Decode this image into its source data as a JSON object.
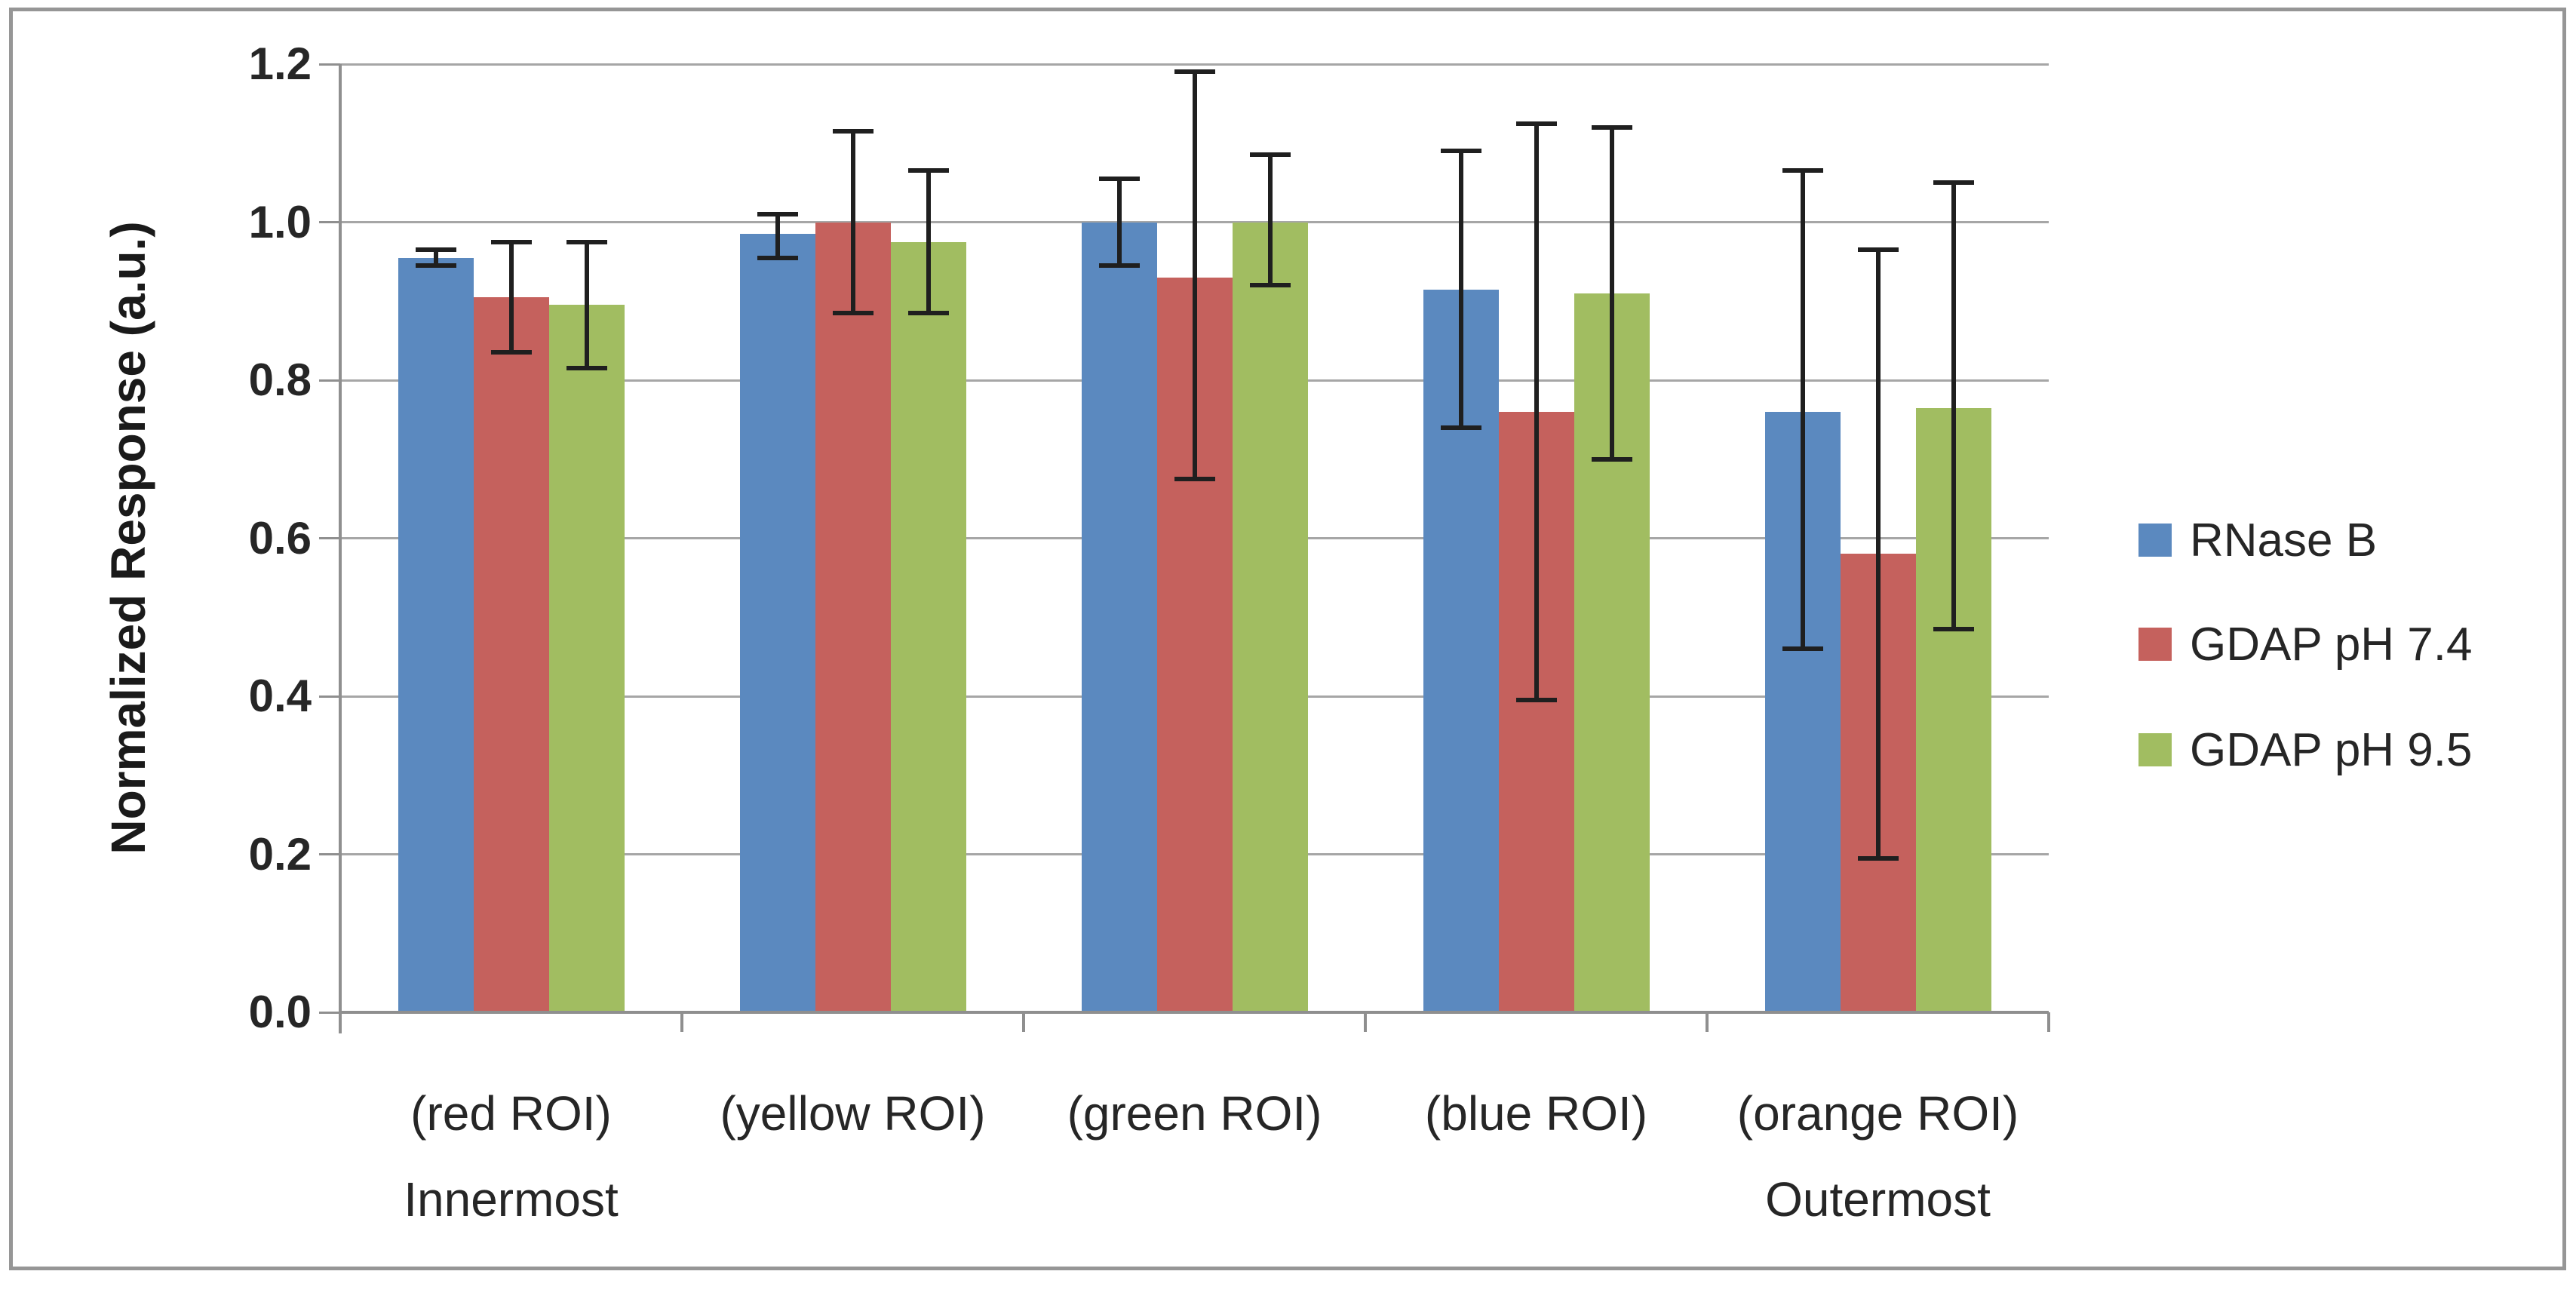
{
  "figure": {
    "background": "#ffffff",
    "frame_color": "#969696",
    "gridline_color": "#a6a6a6",
    "axis_color": "#8f8f8f",
    "text_color": "#262626",
    "error_bar_color": "#1f1f1f"
  },
  "chart_data": {
    "type": "bar",
    "title": "",
    "xlabel": "",
    "ylabel": "Normalized Response (a.u.)",
    "ylim": [
      0.0,
      1.2
    ],
    "y_tick_step": 0.2,
    "y_tick_labels": [
      "0.0",
      "0.2",
      "0.4",
      "0.6",
      "0.8",
      "1.0",
      "1.2"
    ],
    "grid": "horizontal",
    "legend_position": "right",
    "categories": [
      "(red ROI)",
      "(yellow ROI)",
      "(green ROI)",
      "(blue ROI)",
      "(orange ROI)"
    ],
    "category_sublabels": [
      "Innermost",
      "",
      "",
      "",
      "Outermost"
    ],
    "series": [
      {
        "name": "RNase B",
        "color": "#5b89bf",
        "values": [
          0.955,
          0.985,
          1.0,
          0.915,
          0.76
        ],
        "error_plus": [
          0.01,
          0.025,
          0.055,
          0.175,
          0.305
        ],
        "error_minus": [
          0.01,
          0.03,
          0.055,
          0.175,
          0.3
        ]
      },
      {
        "name": "GDAP pH 7.4",
        "color": "#c5615d",
        "values": [
          0.905,
          1.0,
          0.93,
          0.76,
          0.58
        ],
        "error_plus": [
          0.07,
          0.115,
          0.26,
          0.365,
          0.385
        ],
        "error_minus": [
          0.07,
          0.115,
          0.255,
          0.365,
          0.385
        ]
      },
      {
        "name": "GDAP pH 9.5",
        "color": "#a1bd61",
        "values": [
          0.895,
          0.975,
          1.0,
          0.91,
          0.765
        ],
        "error_plus": [
          0.08,
          0.09,
          0.085,
          0.21,
          0.285
        ],
        "error_minus": [
          0.08,
          0.09,
          0.08,
          0.21,
          0.28
        ]
      }
    ]
  }
}
